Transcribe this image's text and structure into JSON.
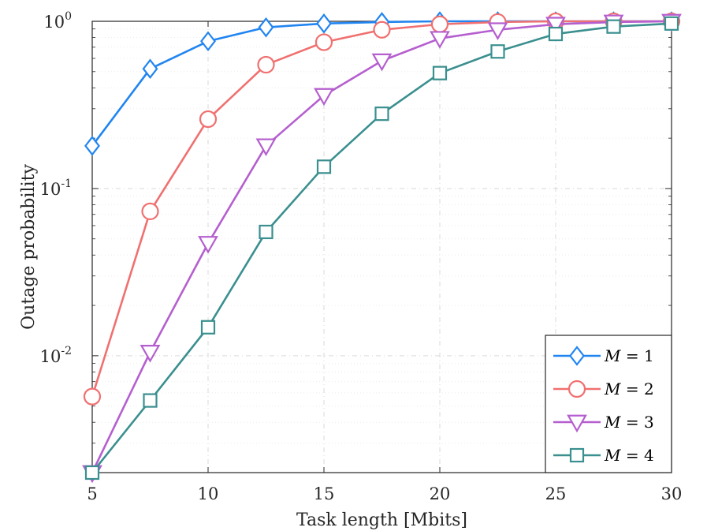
{
  "chart_data": {
    "type": "line",
    "yscale": "log",
    "title": "",
    "xlabel": "Task length [Mbits]",
    "ylabel": "Outage probability",
    "xlim": [
      5,
      30
    ],
    "ylim": [
      0.002,
      1
    ],
    "grid": true,
    "x_ticks": [
      "5",
      "10",
      "15",
      "20",
      "25",
      "30"
    ],
    "x_tick_values": [
      5,
      10,
      15,
      20,
      25,
      30
    ],
    "y_ticks": [
      {
        "value": 0.01,
        "base": "10",
        "exp": "-2"
      },
      {
        "value": 0.1,
        "base": "10",
        "exp": "-1"
      },
      {
        "value": 1,
        "base": "10",
        "exp": "0"
      }
    ],
    "x": [
      5,
      7.5,
      10,
      12.5,
      15,
      17.5,
      20,
      22.5,
      25,
      27.5,
      30
    ],
    "legend_position": "bottom-right",
    "series": [
      {
        "name": "M = 1",
        "legend_var": "M",
        "legend_rest": " = 1",
        "color": "#2185f1",
        "marker": "diamond",
        "values": [
          0.18,
          0.52,
          0.76,
          0.92,
          0.97,
          0.99,
          1.0,
          1.0,
          1.0,
          1.0,
          1.0
        ]
      },
      {
        "name": "M = 2",
        "legend_var": "M",
        "legend_rest": " = 2",
        "color": "#f07070",
        "marker": "circle",
        "values": [
          0.0057,
          0.073,
          0.26,
          0.55,
          0.75,
          0.89,
          0.96,
          0.99,
          1.0,
          1.0,
          1.0
        ]
      },
      {
        "name": "M = 3",
        "legend_var": "M",
        "legend_rest": " = 3",
        "color": "#b55fcf",
        "marker": "triangle-down",
        "values": [
          0.002,
          0.0105,
          0.047,
          0.18,
          0.36,
          0.58,
          0.79,
          0.89,
          0.96,
          0.99,
          1.0
        ]
      },
      {
        "name": "M = 4",
        "legend_var": "M",
        "legend_rest": " = 4",
        "color": "#3b8f8f",
        "marker": "square",
        "values": [
          0.002,
          0.0054,
          0.0148,
          0.055,
          0.135,
          0.28,
          0.49,
          0.66,
          0.84,
          0.93,
          0.97
        ]
      }
    ]
  }
}
